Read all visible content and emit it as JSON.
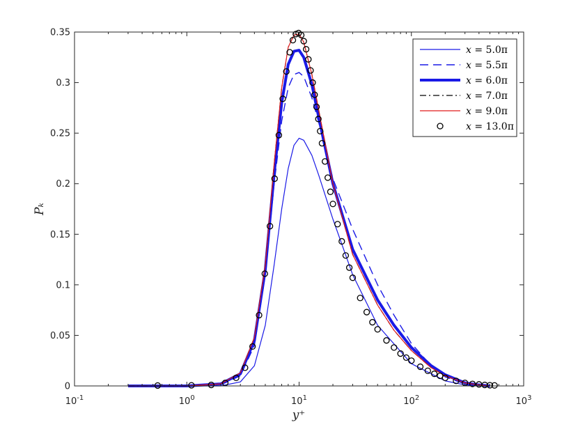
{
  "chart_data": {
    "type": "line",
    "xscale": "log",
    "xlim": [
      0.1,
      1000
    ],
    "ylim": [
      0,
      0.35
    ],
    "xlabel": "y⁺",
    "ylabel": "Pₖ",
    "x_tick_labels": [
      {
        "base": "10",
        "exp": "-1"
      },
      {
        "base": "10",
        "exp": "0"
      },
      {
        "base": "10",
        "exp": "1"
      },
      {
        "base": "10",
        "exp": "2"
      },
      {
        "base": "10",
        "exp": "3"
      }
    ],
    "y_ticks": [
      0,
      0.05,
      0.1,
      0.15,
      0.2,
      0.25,
      0.3,
      0.35
    ],
    "y_tick_labels": [
      "0",
      "0.05",
      "0.1",
      "0.15",
      "0.2",
      "0.25",
      "0.3",
      "0.35"
    ],
    "legend_position": "top-right",
    "series": [
      {
        "name": "x = 5.0π",
        "label_var": "x",
        "label_eq": " = ",
        "label_val": "5.0π",
        "color": "#1a1ae6",
        "style": "solid",
        "width": 1.2,
        "x": [
          0.3,
          1,
          2,
          3,
          4,
          5,
          6,
          7,
          8,
          9,
          10,
          11,
          13,
          15,
          20,
          30,
          50,
          100,
          200,
          300,
          400
        ],
        "y": [
          0,
          0,
          0,
          0.004,
          0.02,
          0.06,
          0.12,
          0.175,
          0.215,
          0.238,
          0.245,
          0.243,
          0.228,
          0.208,
          0.165,
          0.11,
          0.06,
          0.022,
          0.005,
          0.001,
          0
        ]
      },
      {
        "name": "x = 5.5π",
        "label_var": "x",
        "label_eq": " = ",
        "label_val": "5.5π",
        "color": "#1a1ae6",
        "style": "dashed",
        "width": 1.4,
        "x": [
          0.3,
          1,
          2,
          3,
          4,
          5,
          6,
          7,
          8,
          9,
          10,
          11,
          13,
          15,
          20,
          30,
          50,
          70,
          100,
          150,
          200,
          300,
          400
        ],
        "y": [
          0,
          0,
          0.001,
          0.01,
          0.04,
          0.11,
          0.2,
          0.262,
          0.295,
          0.308,
          0.31,
          0.306,
          0.285,
          0.26,
          0.205,
          0.155,
          0.1,
          0.07,
          0.042,
          0.02,
          0.009,
          0.002,
          0
        ]
      },
      {
        "name": "x = 6.0π",
        "label_var": "x",
        "label_eq": " = ",
        "label_val": "6.0π",
        "color": "#1a1ae6",
        "style": "solid",
        "width": 4,
        "x": [
          0.3,
          1,
          2,
          3,
          4,
          5,
          6,
          7,
          8,
          9,
          10,
          11,
          13,
          15,
          20,
          30,
          50,
          70,
          100,
          150,
          200,
          300,
          400,
          500
        ],
        "y": [
          0,
          0,
          0.002,
          0.012,
          0.045,
          0.115,
          0.21,
          0.28,
          0.318,
          0.331,
          0.332,
          0.325,
          0.298,
          0.265,
          0.2,
          0.135,
          0.085,
          0.06,
          0.038,
          0.02,
          0.011,
          0.003,
          0.001,
          0
        ]
      },
      {
        "name": "x = 7.0π",
        "label_var": "x",
        "label_eq": " = ",
        "label_val": "7.0π",
        "color": "#000000",
        "style": "dashdot",
        "width": 1.2,
        "x": [
          0.3,
          1,
          2,
          3,
          4,
          5,
          6,
          7,
          8,
          9,
          10,
          11,
          13,
          15,
          20,
          30,
          50,
          70,
          100,
          150,
          200,
          300,
          400,
          500
        ],
        "y": [
          0,
          0,
          0.002,
          0.013,
          0.048,
          0.12,
          0.22,
          0.295,
          0.335,
          0.347,
          0.348,
          0.34,
          0.308,
          0.272,
          0.2,
          0.13,
          0.08,
          0.055,
          0.035,
          0.018,
          0.01,
          0.003,
          0.001,
          0
        ]
      },
      {
        "name": "x = 9.0π",
        "label_var": "x",
        "label_eq": " = ",
        "label_val": "9.0π",
        "color": "#e01b1b",
        "style": "solid",
        "width": 1.2,
        "x": [
          0.3,
          1,
          2,
          3,
          4,
          5,
          6,
          7,
          8,
          9,
          10,
          11,
          13,
          15,
          20,
          30,
          50,
          70,
          100,
          150,
          200,
          300,
          400,
          500
        ],
        "y": [
          0,
          0,
          0.002,
          0.013,
          0.048,
          0.12,
          0.22,
          0.295,
          0.335,
          0.347,
          0.348,
          0.34,
          0.308,
          0.272,
          0.2,
          0.13,
          0.08,
          0.055,
          0.035,
          0.018,
          0.01,
          0.003,
          0.001,
          0
        ]
      },
      {
        "name": "x = 13.0π",
        "label_var": "x",
        "label_eq": " = ",
        "label_val": "13.0π",
        "color": "#000000",
        "style": "markers",
        "marker": "circle",
        "x": [
          0.55,
          1.1,
          1.65,
          2.2,
          2.75,
          3.3,
          3.85,
          4.4,
          4.95,
          5.5,
          6.05,
          6.6,
          7.15,
          7.7,
          8.25,
          8.8,
          9.35,
          9.9,
          10.45,
          11,
          11.55,
          12.1,
          12.65,
          13.2,
          13.75,
          14.3,
          14.85,
          15.4,
          16,
          17,
          18,
          19,
          20,
          22,
          24,
          26,
          28,
          30,
          35,
          40,
          45,
          50,
          60,
          70,
          80,
          90,
          100,
          120,
          140,
          160,
          180,
          200,
          250,
          300,
          350,
          400,
          450,
          500,
          550
        ],
        "y": [
          0.0004,
          0.0006,
          0.001,
          0.003,
          0.008,
          0.018,
          0.039,
          0.07,
          0.111,
          0.158,
          0.205,
          0.248,
          0.284,
          0.311,
          0.33,
          0.342,
          0.348,
          0.349,
          0.347,
          0.341,
          0.333,
          0.323,
          0.312,
          0.3,
          0.288,
          0.276,
          0.264,
          0.252,
          0.24,
          0.222,
          0.206,
          0.192,
          0.18,
          0.16,
          0.143,
          0.129,
          0.117,
          0.107,
          0.087,
          0.073,
          0.063,
          0.056,
          0.045,
          0.038,
          0.032,
          0.028,
          0.025,
          0.019,
          0.015,
          0.012,
          0.01,
          0.008,
          0.005,
          0.003,
          0.002,
          0.0015,
          0.001,
          0.0007,
          0.0005
        ]
      }
    ]
  }
}
